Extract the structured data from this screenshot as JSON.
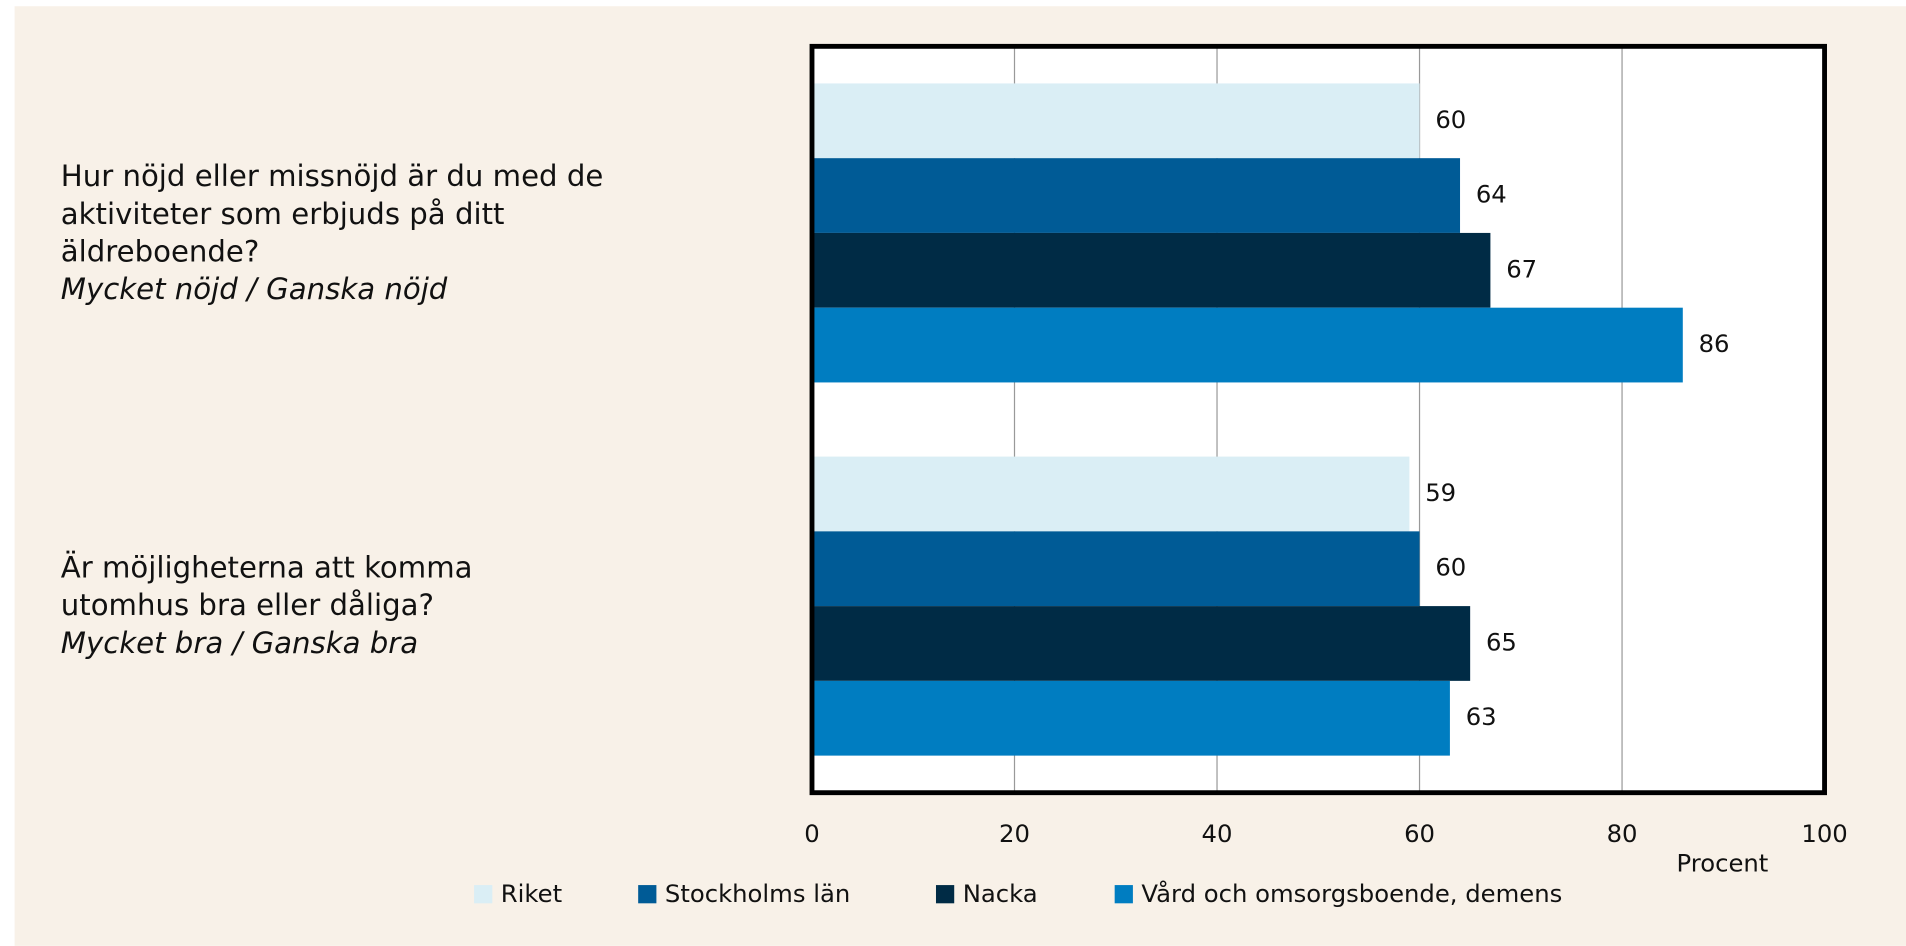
{
  "chart_data": {
    "type": "hbar",
    "categories": [
      "Hur nöjd eller missnöjd är du med de aktiviteter som erbjuds på ditt äldreboende?",
      "Är möjligheterna att komma utomhus bra eller dåliga?"
    ],
    "category_subtitles": [
      "Mycket nöjd / Ganska nöjd",
      "Mycket bra / Ganska bra"
    ],
    "series": [
      {
        "name": "Riket",
        "color": "#daeef5",
        "values": [
          60,
          59
        ]
      },
      {
        "name": "Stockholms län",
        "color": "#005b96",
        "values": [
          64,
          60
        ]
      },
      {
        "name": "Nacka",
        "color": "#002b45",
        "values": [
          67,
          65
        ]
      },
      {
        "name": "Vård och omsorgsboende, demens",
        "color": "#007dc1",
        "values": [
          86,
          63
        ]
      }
    ],
    "xlabel": "Procent",
    "xlim": [
      0,
      100
    ],
    "xticks": [
      0,
      20,
      40,
      60,
      80,
      100
    ],
    "grid": true
  }
}
